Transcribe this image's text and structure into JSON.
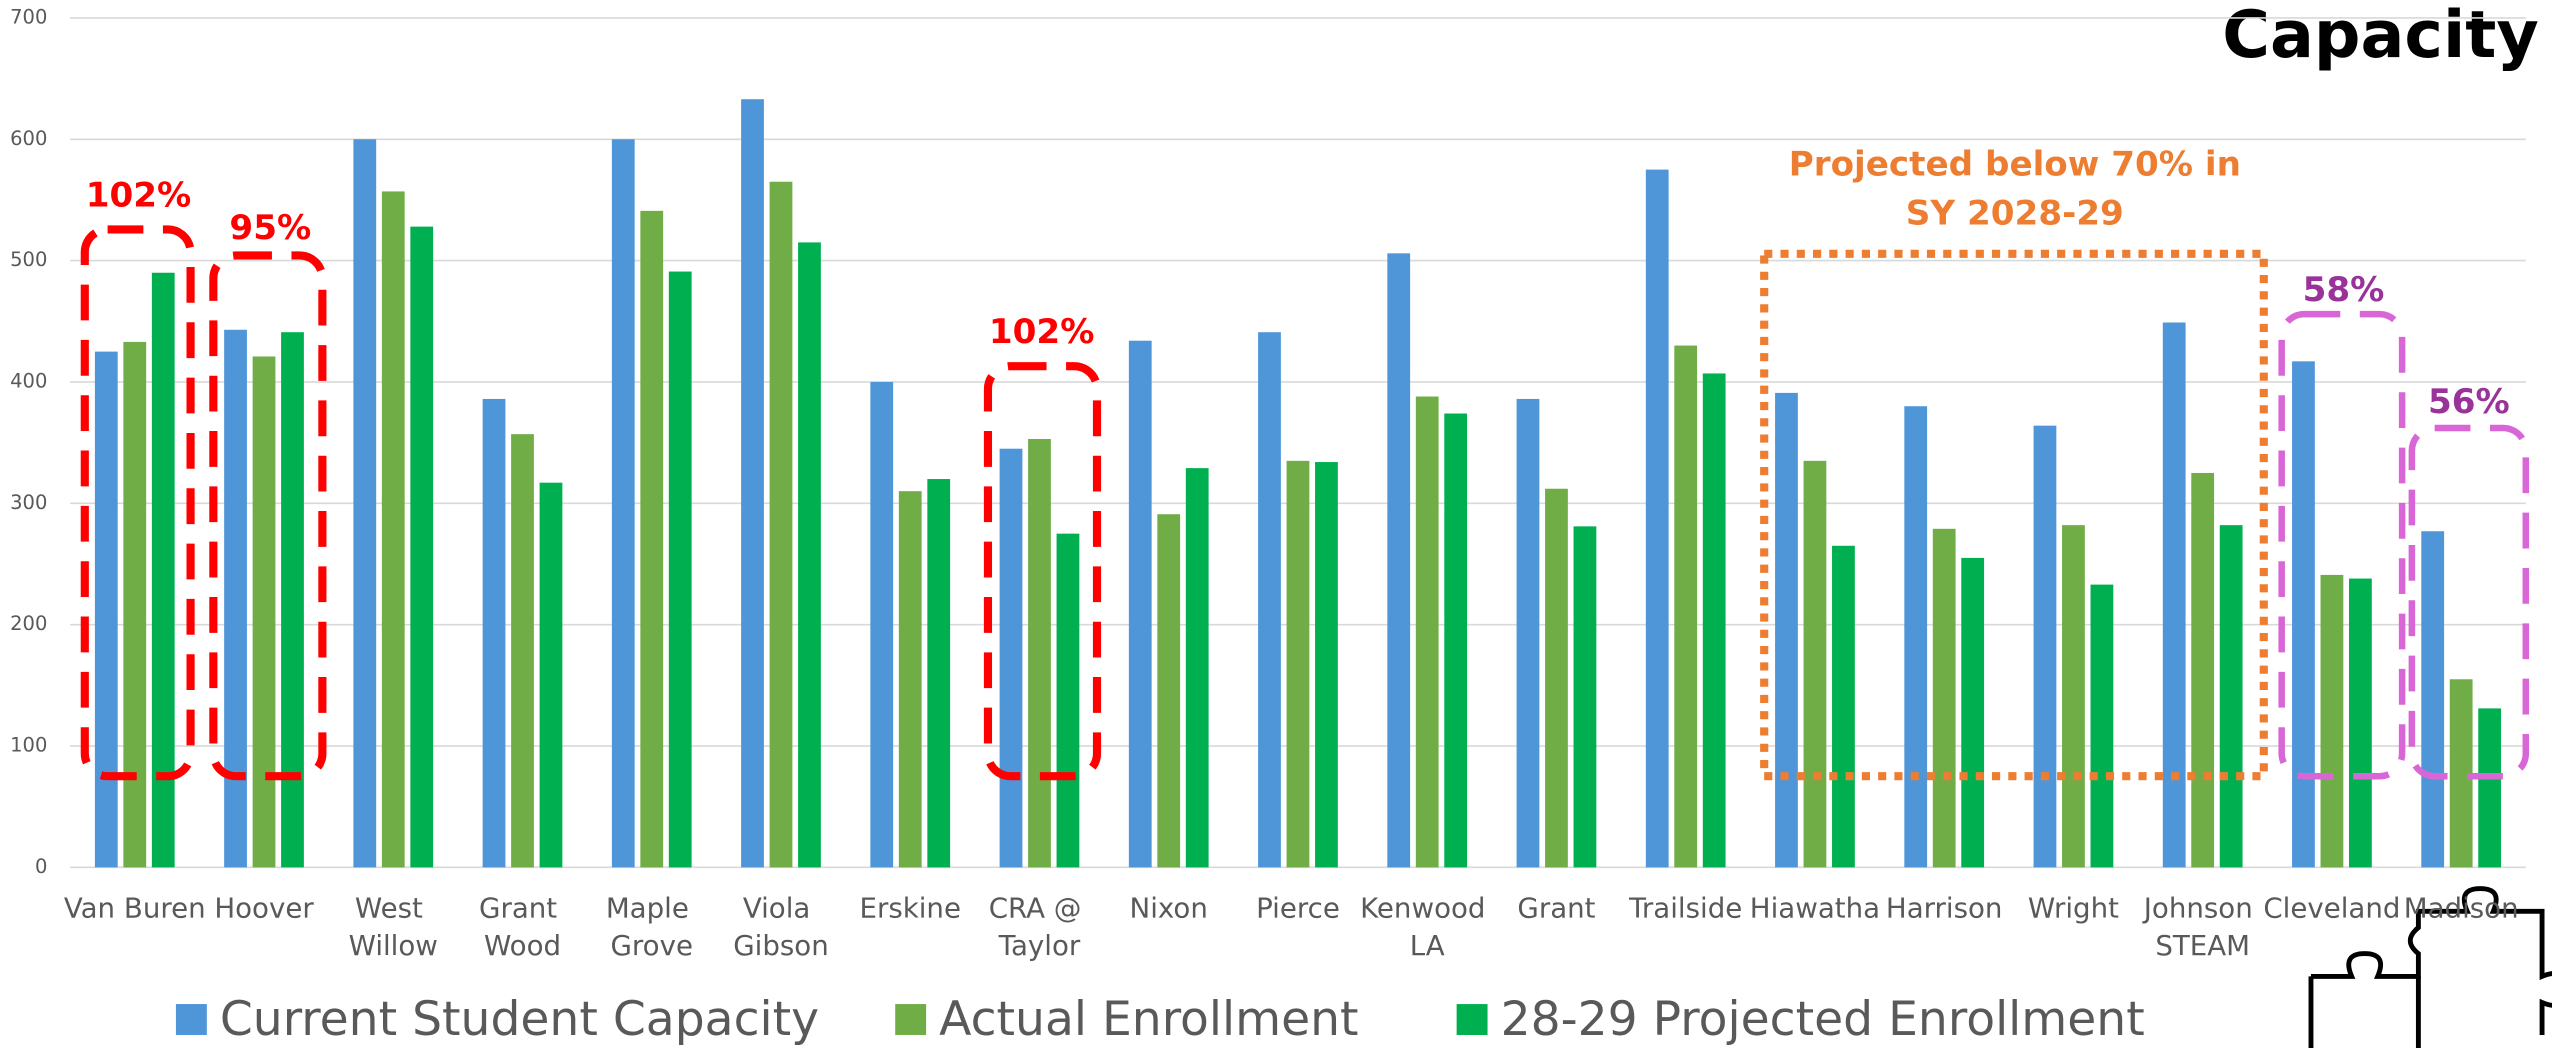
{
  "chart_data": {
    "type": "bar",
    "title": "Capacity",
    "categories": [
      "Van Buren",
      "Hoover",
      "West Willow",
      "Grant Wood",
      "Maple Grove",
      "Viola Gibson",
      "Erskine",
      "CRA @ Taylor",
      "Nixon",
      "Pierce",
      "Kenwood LA",
      "Grant",
      "Trailside",
      "Hiawatha",
      "Harrison",
      "Wright",
      "Johnson STEAM",
      "Cleveland",
      "Madison"
    ],
    "series": [
      {
        "name": "Current Student Capacity",
        "color": "#4f96d9",
        "values": [
          425,
          443,
          600,
          386,
          600,
          633,
          400,
          345,
          434,
          441,
          506,
          386,
          575,
          391,
          380,
          364,
          449,
          417,
          277
        ]
      },
      {
        "name": "Actual Enrollment",
        "color": "#70ad47",
        "values": [
          433,
          421,
          557,
          357,
          541,
          565,
          310,
          353,
          291,
          335,
          388,
          312,
          430,
          335,
          279,
          282,
          325,
          241,
          155
        ]
      },
      {
        "name": "28-29 Projected Enrollment",
        "color": "#00b050",
        "values": [
          490,
          441,
          528,
          317,
          491,
          515,
          320,
          275,
          329,
          334,
          374,
          281,
          407,
          265,
          255,
          233,
          282,
          238,
          131
        ]
      }
    ],
    "ylim": [
      0,
      700
    ],
    "yticks": [
      0,
      100,
      200,
      300,
      400,
      500,
      600,
      700
    ],
    "grid": true,
    "legend": "bottom",
    "annotations": [
      {
        "lines": [
          "102%"
        ],
        "color": "#ff0000"
      },
      {
        "lines": [
          "95%"
        ],
        "color": "#ff0000"
      },
      {
        "lines": [
          "102%"
        ],
        "color": "#ff0000"
      },
      {
        "lines": [
          "Projected below 70% in",
          "SY 2028-29"
        ],
        "color": "#ed7d31"
      },
      {
        "lines": [
          "58%"
        ],
        "color": "#993399"
      },
      {
        "lines": [
          "56%"
        ],
        "color": "#993399"
      }
    ]
  }
}
